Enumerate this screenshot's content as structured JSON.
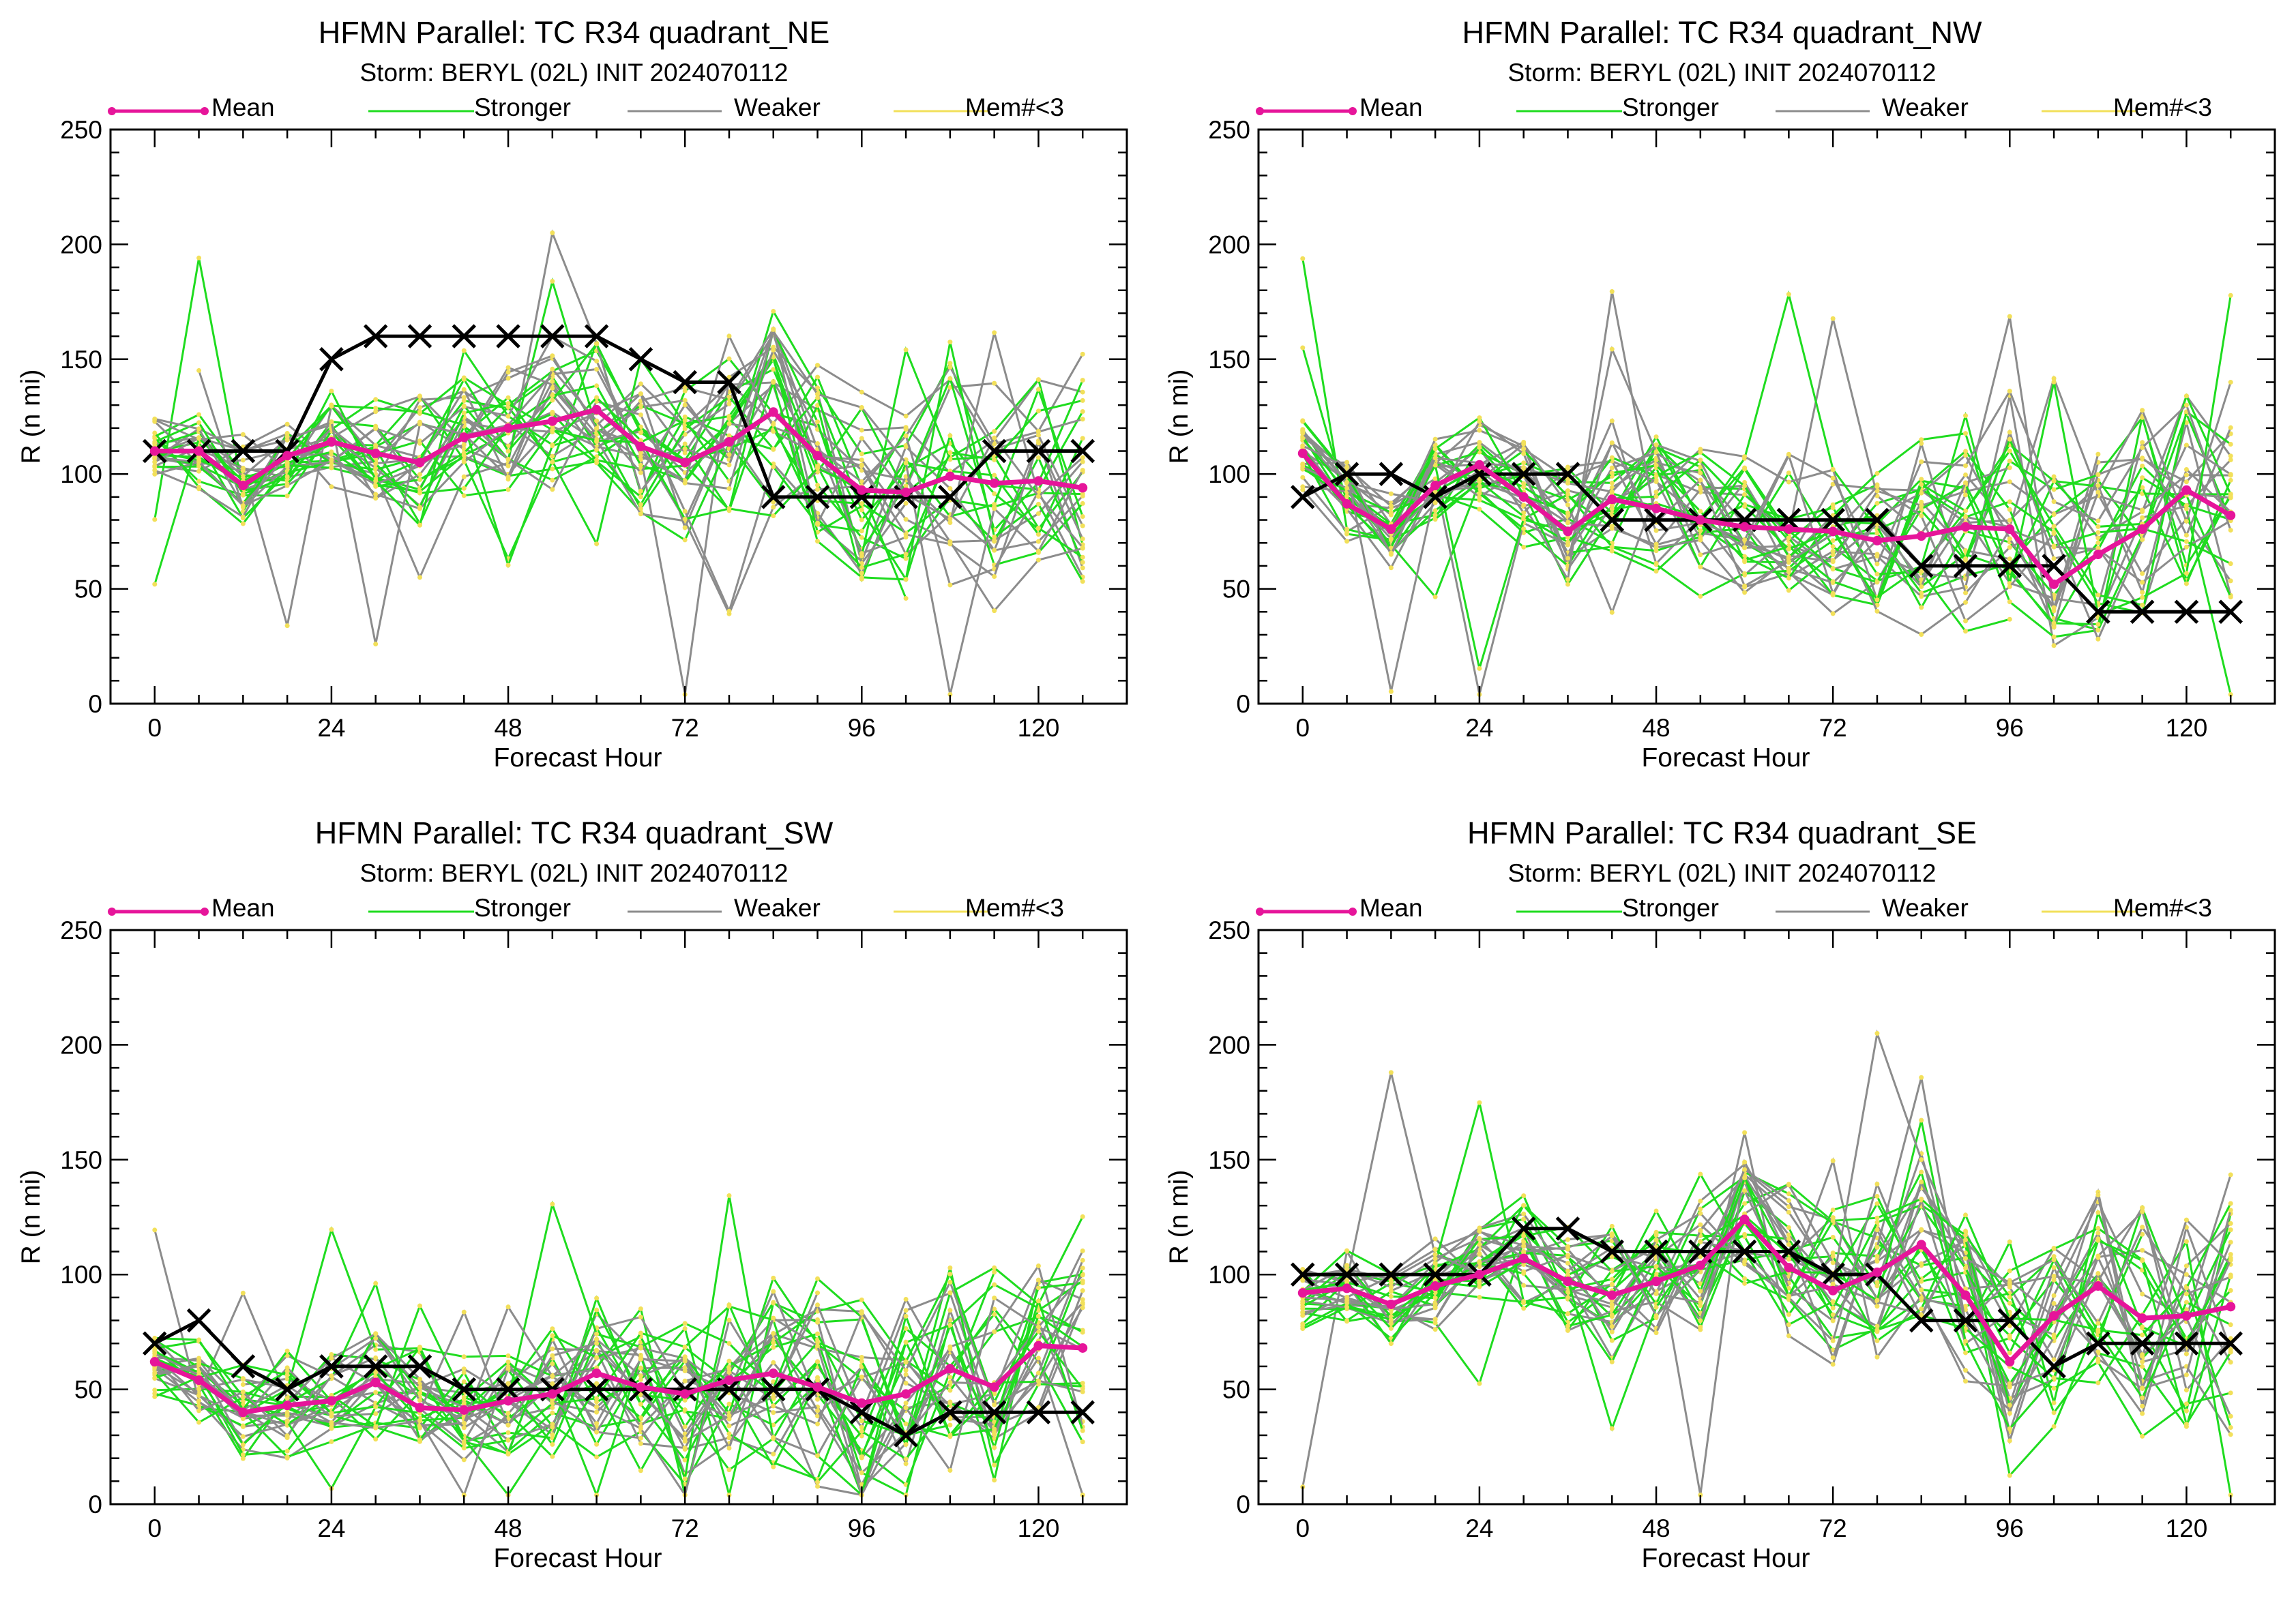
{
  "colors": {
    "mean": "#e6159a",
    "stronger": "#1fdc1f",
    "weaker": "#8c8c8c",
    "mem_lt3": "#f2e05a",
    "observed": "#000000"
  },
  "legend": [
    {
      "key": "mean",
      "label": "Mean",
      "icon": "line-with-dots"
    },
    {
      "key": "stronger",
      "label": "Stronger",
      "icon": "line"
    },
    {
      "key": "weaker",
      "label": "Weaker",
      "icon": "line"
    },
    {
      "key": "mem_lt3",
      "label": "Mem#<3",
      "icon": "line"
    }
  ],
  "chart_data": [
    {
      "type": "line",
      "title": "HFMN Parallel: TC  R34 quadrant_NE",
      "subtitle": "Storm: BERYL (02L) INIT 2024070112",
      "xlabel": "Forecast Hour",
      "ylabel": "R (n mi)",
      "xlim": [
        -6,
        132
      ],
      "ylim": [
        0,
        250
      ],
      "xticks": [
        0,
        24,
        48,
        72,
        96,
        120
      ],
      "yticks": [
        0,
        50,
        100,
        150,
        200,
        250
      ],
      "x": [
        0,
        6,
        12,
        18,
        24,
        30,
        36,
        42,
        48,
        54,
        60,
        66,
        72,
        78,
        84,
        90,
        96,
        102,
        108,
        114,
        120,
        126
      ],
      "series": [
        {
          "name": "Mean",
          "values": [
            110,
            110,
            95,
            108,
            114,
            109,
            105,
            116,
            120,
            123,
            128,
            112,
            105,
            114,
            127,
            108,
            93,
            92,
            99,
            96,
            97,
            94
          ]
        },
        {
          "values": [
            110,
            110,
            110,
            110,
            150,
            160,
            160,
            160,
            160,
            160,
            160,
            150,
            140,
            140,
            90,
            90,
            90,
            90,
            90,
            110,
            110,
            110
          ]
        }
      ]
    },
    {
      "type": "line",
      "title": "HFMN Parallel: TC  R34 quadrant_NW",
      "subtitle": "Storm: BERYL (02L) INIT 2024070112",
      "xlabel": "Forecast Hour",
      "ylabel": "R (n mi)",
      "xlim": [
        -6,
        132
      ],
      "ylim": [
        0,
        250
      ],
      "xticks": [
        0,
        24,
        48,
        72,
        96,
        120
      ],
      "yticks": [
        0,
        50,
        100,
        150,
        200,
        250
      ],
      "x": [
        0,
        6,
        12,
        18,
        24,
        30,
        36,
        42,
        48,
        54,
        60,
        66,
        72,
        78,
        84,
        90,
        96,
        102,
        108,
        114,
        120,
        126
      ],
      "series": [
        {
          "name": "Mean",
          "values": [
            109,
            87,
            76,
            95,
            104,
            90,
            75,
            89,
            85,
            80,
            77,
            76,
            75,
            71,
            73,
            77,
            76,
            52,
            65,
            76,
            93,
            82
          ]
        },
        {
          "values": [
            90,
            100,
            100,
            90,
            100,
            100,
            100,
            80,
            80,
            80,
            80,
            80,
            80,
            80,
            60,
            60,
            60,
            60,
            40,
            40,
            40,
            40
          ]
        }
      ]
    },
    {
      "type": "line",
      "title": "HFMN Parallel: TC  R34 quadrant_SW",
      "subtitle": "Storm: BERYL (02L) INIT 2024070112",
      "xlabel": "Forecast Hour",
      "ylabel": "R (n mi)",
      "xlim": [
        -6,
        132
      ],
      "ylim": [
        0,
        250
      ],
      "xticks": [
        0,
        24,
        48,
        72,
        96,
        120
      ],
      "yticks": [
        0,
        50,
        100,
        150,
        200,
        250
      ],
      "x": [
        0,
        6,
        12,
        18,
        24,
        30,
        36,
        42,
        48,
        54,
        60,
        66,
        72,
        78,
        84,
        90,
        96,
        102,
        108,
        114,
        120,
        126
      ],
      "series": [
        {
          "name": "Mean",
          "values": [
            62,
            54,
            40,
            43,
            45,
            53,
            42,
            41,
            45,
            48,
            57,
            51,
            48,
            54,
            57,
            51,
            44,
            48,
            59,
            51,
            69,
            68
          ]
        },
        {
          "values": [
            70,
            80,
            60,
            50,
            60,
            60,
            60,
            50,
            50,
            50,
            50,
            50,
            50,
            50,
            50,
            50,
            40,
            30,
            40,
            40,
            40,
            40
          ]
        }
      ]
    },
    {
      "type": "line",
      "title": "HFMN Parallel: TC  R34 quadrant_SE",
      "subtitle": "Storm: BERYL (02L) INIT 2024070112",
      "xlabel": "Forecast Hour",
      "ylabel": "R (n mi)",
      "xlim": [
        -6,
        132
      ],
      "ylim": [
        0,
        250
      ],
      "xticks": [
        0,
        24,
        48,
        72,
        96,
        120
      ],
      "yticks": [
        0,
        50,
        100,
        150,
        200,
        250
      ],
      "x": [
        0,
        6,
        12,
        18,
        24,
        30,
        36,
        42,
        48,
        54,
        60,
        66,
        72,
        78,
        84,
        90,
        96,
        102,
        108,
        114,
        120,
        126
      ],
      "series": [
        {
          "name": "Mean",
          "values": [
            92,
            94,
            87,
            95,
            100,
            107,
            97,
            91,
            97,
            104,
            124,
            103,
            93,
            101,
            113,
            91,
            62,
            82,
            95,
            81,
            82,
            86
          ]
        },
        {
          "values": [
            100,
            100,
            100,
            100,
            100,
            120,
            120,
            110,
            110,
            110,
            110,
            110,
            100,
            100,
            80,
            80,
            80,
            60,
            70,
            70,
            70,
            70
          ]
        }
      ]
    }
  ]
}
